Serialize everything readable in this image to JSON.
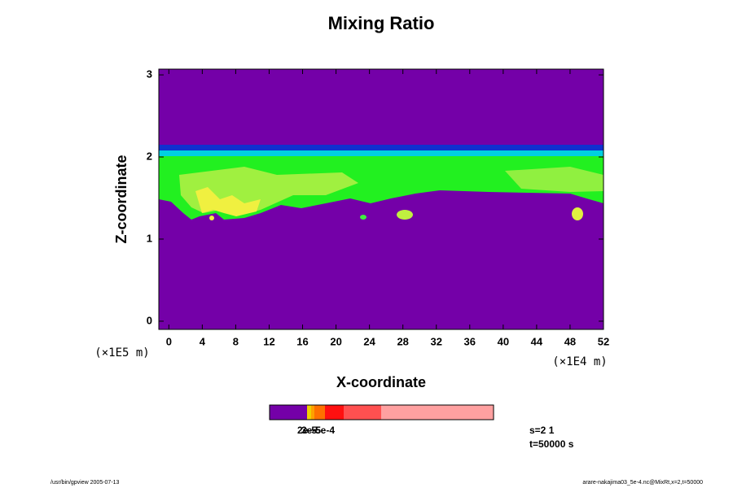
{
  "chart_data": {
    "type": "contour",
    "title": "Mixing Ratio",
    "x_label": "X-coordinate",
    "y_label": "Z-coordinate",
    "x_scale_label": "(×1E4 m)",
    "y_scale_label": "(×1E5 m)",
    "xlim": [
      -1.2,
      52
    ],
    "ylim": [
      -0.1,
      3.07
    ],
    "xticks": [
      0,
      4,
      8,
      12,
      16,
      20,
      24,
      28,
      32,
      36,
      40,
      44,
      48,
      52
    ],
    "yticks": [
      0,
      1,
      2,
      3
    ],
    "colorbar_labels": [
      "2e-5",
      "3e-5",
      "5e-4"
    ],
    "info": [
      "s=2 1",
      "t=50000 s"
    ],
    "footer_left": "/usr/bin/gpview 2005-07-13",
    "footer_right": "arare-nakajima03_5e-4.nc@MixRt,x=2,t=50000"
  }
}
